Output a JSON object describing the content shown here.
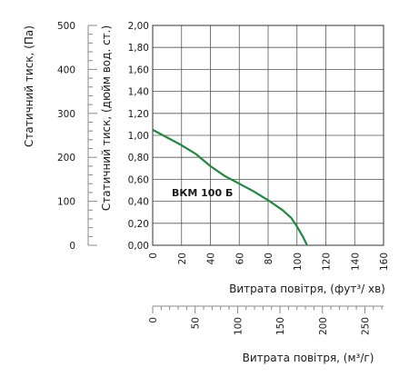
{
  "chart_data": {
    "type": "line",
    "title": "",
    "series": [
      {
        "name": "ВКМ 100 Б",
        "x_unit": "фут³/хв",
        "y_unit": "дюйм вод. ст.",
        "points": [
          [
            0,
            1.05
          ],
          [
            10,
            0.98
          ],
          [
            20,
            0.91
          ],
          [
            30,
            0.83
          ],
          [
            40,
            0.72
          ],
          [
            50,
            0.63
          ],
          [
            60,
            0.56
          ],
          [
            70,
            0.49
          ],
          [
            80,
            0.41
          ],
          [
            90,
            0.32
          ],
          [
            96,
            0.25
          ],
          [
            100,
            0.17
          ],
          [
            104,
            0.08
          ],
          [
            107,
            0.0
          ]
        ],
        "color": "#1e8a3c"
      }
    ],
    "axes": {
      "y_inner": {
        "label": "Статичний тиск, (дюйм вод. ст.)",
        "range": [
          0,
          2
        ],
        "ticks": [
          "0,00",
          "0,20",
          "0,40",
          "0,60",
          "0,80",
          "1,00",
          "1,20",
          "1,40",
          "1,60",
          "1,80",
          "2,00"
        ]
      },
      "y_outer": {
        "label": "Статичний тиск, (Па)",
        "range": [
          0,
          500
        ],
        "ticks": [
          "0",
          "100",
          "200",
          "300",
          "400",
          "500"
        ]
      },
      "x_top": {
        "label": "Витрата повітря, (фут³/ хв)",
        "range": [
          0,
          160
        ],
        "ticks": [
          "0",
          "20",
          "40",
          "60",
          "80",
          "100",
          "120",
          "140",
          "160"
        ]
      },
      "x_bottom": {
        "label": "Витрата повітря, (м³/г)",
        "range": [
          0,
          272
        ],
        "ticks": [
          "0",
          "50",
          "100",
          "150",
          "200",
          "250"
        ]
      }
    },
    "grid": true,
    "legend": "inline"
  }
}
